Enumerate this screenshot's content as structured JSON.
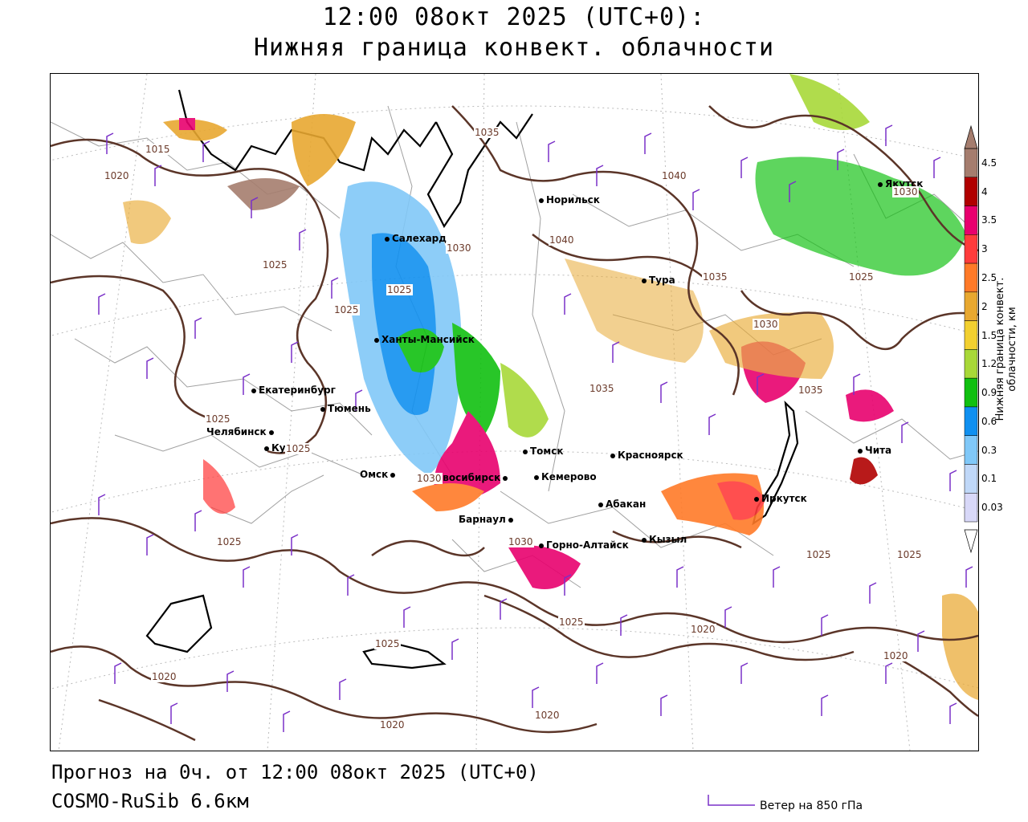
{
  "header": {
    "title_line1": "12:00 08окт 2025 (UTC+0):",
    "title_line2": "Нижняя граница конвект. облачности"
  },
  "footer": {
    "forecast": "Прогноз на 0ч. от 12:00 08окт 2025 (UTC+0)",
    "model": "COSMO-RuSib 6.6км",
    "wind_legend": "Ветер на 850 гПа"
  },
  "colorbar": {
    "title": "Нижняя граница конвект. облачности, км",
    "ticks": [
      "4.5",
      "4",
      "3.5",
      "3",
      "2.5",
      "2",
      "1.5",
      "1.2",
      "0.9",
      "0.6",
      "0.3",
      "0.1",
      "0.03"
    ],
    "colors": [
      "#a57d6e",
      "#b00000",
      "#e8006e",
      "#ff3c3c",
      "#ff7a28",
      "#e8a830",
      "#f2d030",
      "#a8d838",
      "#10c010",
      "#1090f0",
      "#80c8f8",
      "#c0d8f8",
      "#d8d8f8"
    ]
  },
  "cities": [
    {
      "name": "Норильск"
    },
    {
      "name": "Салехард"
    },
    {
      "name": "Тура"
    },
    {
      "name": "Якутск"
    },
    {
      "name": "Ханты-Мансийск"
    },
    {
      "name": "Екатеринбург"
    },
    {
      "name": "Тюмень"
    },
    {
      "name": "Челябинск"
    },
    {
      "name": "Курган"
    },
    {
      "name": "Омск"
    },
    {
      "name": "Новосибирск"
    },
    {
      "name": "Томск"
    },
    {
      "name": "Кемерово"
    },
    {
      "name": "Красноярск"
    },
    {
      "name": "Барнаул"
    },
    {
      "name": "Абакан"
    },
    {
      "name": "Горно-Алтайск"
    },
    {
      "name": "Кызыл"
    },
    {
      "name": "Иркутск"
    },
    {
      "name": "Чита"
    }
  ],
  "isobar_labels": [
    "1015",
    "1020",
    "1025",
    "1030",
    "1035",
    "1040",
    "1035",
    "1040",
    "1030",
    "1025",
    "1025",
    "1025",
    "1025",
    "1030",
    "1035",
    "1030",
    "1035",
    "1025",
    "1025",
    "1020",
    "1025",
    "1030",
    "1025",
    "1020",
    "1020",
    "1025",
    "1020",
    "1020",
    "1025",
    "1030"
  ]
}
